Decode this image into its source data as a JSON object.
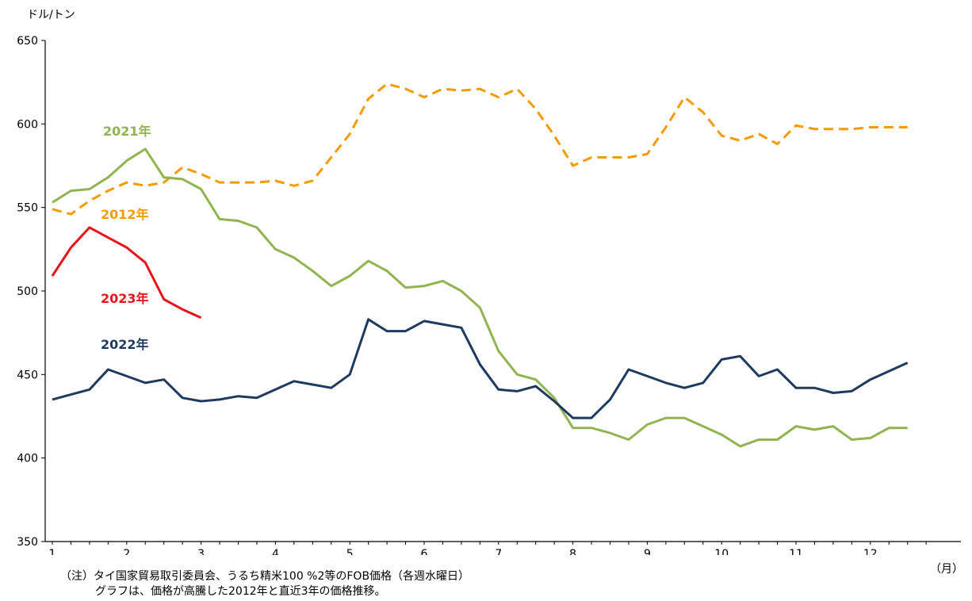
{
  "chart_data": {
    "type": "line",
    "ylabel": "ドル/トン",
    "xunit_label": "（月）",
    "ylim": [
      350,
      650
    ],
    "yticks": [
      350,
      400,
      450,
      500,
      550,
      600,
      650
    ],
    "month_labels": [
      "1",
      "2",
      "3",
      "4",
      "5",
      "6",
      "7",
      "8",
      "9",
      "10",
      "11",
      "12"
    ],
    "x_range": [
      1,
      12.5
    ],
    "grid": false,
    "series": [
      {
        "name": "2012年",
        "color": "#F59B00",
        "dash": true,
        "points": [
          [
            1.0,
            549
          ],
          [
            1.25,
            546
          ],
          [
            1.5,
            554
          ],
          [
            1.75,
            560
          ],
          [
            2.0,
            565
          ],
          [
            2.25,
            563
          ],
          [
            2.5,
            565
          ],
          [
            2.75,
            574
          ],
          [
            3.0,
            570
          ],
          [
            3.25,
            565
          ],
          [
            3.5,
            565
          ],
          [
            3.75,
            565
          ],
          [
            4.0,
            566
          ],
          [
            4.25,
            563
          ],
          [
            4.5,
            566
          ],
          [
            4.75,
            580
          ],
          [
            5.0,
            594
          ],
          [
            5.25,
            615
          ],
          [
            5.5,
            624
          ],
          [
            5.75,
            621
          ],
          [
            6.0,
            616
          ],
          [
            6.25,
            621
          ],
          [
            6.5,
            620
          ],
          [
            6.75,
            621
          ],
          [
            7.0,
            616
          ],
          [
            7.25,
            621
          ],
          [
            7.5,
            609
          ],
          [
            7.75,
            593
          ],
          [
            8.0,
            575
          ],
          [
            8.25,
            580
          ],
          [
            8.5,
            580
          ],
          [
            8.75,
            580
          ],
          [
            9.0,
            582
          ],
          [
            9.25,
            598
          ],
          [
            9.5,
            616
          ],
          [
            9.75,
            607
          ],
          [
            10.0,
            593
          ],
          [
            10.25,
            590
          ],
          [
            10.5,
            594
          ],
          [
            10.75,
            588
          ],
          [
            11.0,
            599
          ],
          [
            11.25,
            597
          ],
          [
            11.5,
            597
          ],
          [
            11.75,
            597
          ],
          [
            12.0,
            598
          ],
          [
            12.25,
            598
          ],
          [
            12.5,
            598
          ]
        ]
      },
      {
        "name": "2021年",
        "color": "#92B450",
        "dash": false,
        "points": [
          [
            1.0,
            553
          ],
          [
            1.25,
            560
          ],
          [
            1.5,
            561
          ],
          [
            1.75,
            568
          ],
          [
            2.0,
            578
          ],
          [
            2.25,
            585
          ],
          [
            2.5,
            568
          ],
          [
            2.75,
            567
          ],
          [
            3.0,
            561
          ],
          [
            3.25,
            543
          ],
          [
            3.5,
            542
          ],
          [
            3.75,
            538
          ],
          [
            4.0,
            525
          ],
          [
            4.25,
            520
          ],
          [
            4.5,
            512
          ],
          [
            4.75,
            503
          ],
          [
            5.0,
            509
          ],
          [
            5.25,
            518
          ],
          [
            5.5,
            512
          ],
          [
            5.75,
            502
          ],
          [
            6.0,
            503
          ],
          [
            6.25,
            506
          ],
          [
            6.5,
            500
          ],
          [
            6.75,
            490
          ],
          [
            7.0,
            464
          ],
          [
            7.25,
            450
          ],
          [
            7.5,
            447
          ],
          [
            7.75,
            436
          ],
          [
            8.0,
            418
          ],
          [
            8.25,
            418
          ],
          [
            8.5,
            415
          ],
          [
            8.75,
            411
          ],
          [
            9.0,
            420
          ],
          [
            9.25,
            424
          ],
          [
            9.5,
            424
          ],
          [
            9.75,
            419
          ],
          [
            10.0,
            414
          ],
          [
            10.25,
            407
          ],
          [
            10.5,
            411
          ],
          [
            10.75,
            411
          ],
          [
            11.0,
            419
          ],
          [
            11.25,
            417
          ],
          [
            11.5,
            419
          ],
          [
            11.75,
            411
          ],
          [
            12.0,
            412
          ],
          [
            12.25,
            418
          ],
          [
            12.5,
            418
          ]
        ]
      },
      {
        "name": "2022年",
        "color": "#1F3A5F",
        "dash": false,
        "points": [
          [
            1.0,
            435
          ],
          [
            1.25,
            438
          ],
          [
            1.5,
            441
          ],
          [
            1.75,
            453
          ],
          [
            2.0,
            449
          ],
          [
            2.25,
            445
          ],
          [
            2.5,
            447
          ],
          [
            2.75,
            436
          ],
          [
            3.0,
            434
          ],
          [
            3.25,
            435
          ],
          [
            3.5,
            437
          ],
          [
            3.75,
            436
          ],
          [
            4.0,
            441
          ],
          [
            4.25,
            446
          ],
          [
            4.5,
            444
          ],
          [
            4.75,
            442
          ],
          [
            5.0,
            450
          ],
          [
            5.25,
            483
          ],
          [
            5.5,
            476
          ],
          [
            5.75,
            476
          ],
          [
            6.0,
            482
          ],
          [
            6.25,
            480
          ],
          [
            6.5,
            478
          ],
          [
            6.75,
            456
          ],
          [
            7.0,
            441
          ],
          [
            7.25,
            440
          ],
          [
            7.5,
            443
          ],
          [
            7.75,
            434
          ],
          [
            8.0,
            424
          ],
          [
            8.25,
            424
          ],
          [
            8.5,
            435
          ],
          [
            8.75,
            453
          ],
          [
            9.0,
            449
          ],
          [
            9.25,
            445
          ],
          [
            9.5,
            442
          ],
          [
            9.75,
            445
          ],
          [
            10.0,
            459
          ],
          [
            10.25,
            461
          ],
          [
            10.5,
            449
          ],
          [
            10.75,
            453
          ],
          [
            11.0,
            442
          ],
          [
            11.25,
            442
          ],
          [
            11.5,
            439
          ],
          [
            11.75,
            440
          ],
          [
            12.0,
            447
          ],
          [
            12.25,
            452
          ],
          [
            12.5,
            457
          ]
        ]
      },
      {
        "name": "2023年",
        "color": "#E8141B",
        "dash": false,
        "points": [
          [
            1.0,
            509
          ],
          [
            1.25,
            526
          ],
          [
            1.5,
            538
          ],
          [
            1.75,
            532
          ],
          [
            2.0,
            526
          ],
          [
            2.25,
            517
          ],
          [
            2.5,
            495
          ],
          [
            2.75,
            489
          ],
          [
            3.0,
            484
          ]
        ]
      }
    ],
    "series_labels": [
      {
        "name": "2021年",
        "color": "#92B450"
      },
      {
        "name": "2012年",
        "color": "#F59B00"
      },
      {
        "name": "2023年",
        "color": "#E8141B"
      },
      {
        "name": "2022年",
        "color": "#1F3A5F"
      }
    ]
  },
  "notes": {
    "line1": "（注）タイ国家貿易取引委員会、うるち精米100 %2等のFOB価格（各週水曜日）",
    "line2": "グラフは、価格が高騰した2012年と直近3年の価格推移。"
  }
}
